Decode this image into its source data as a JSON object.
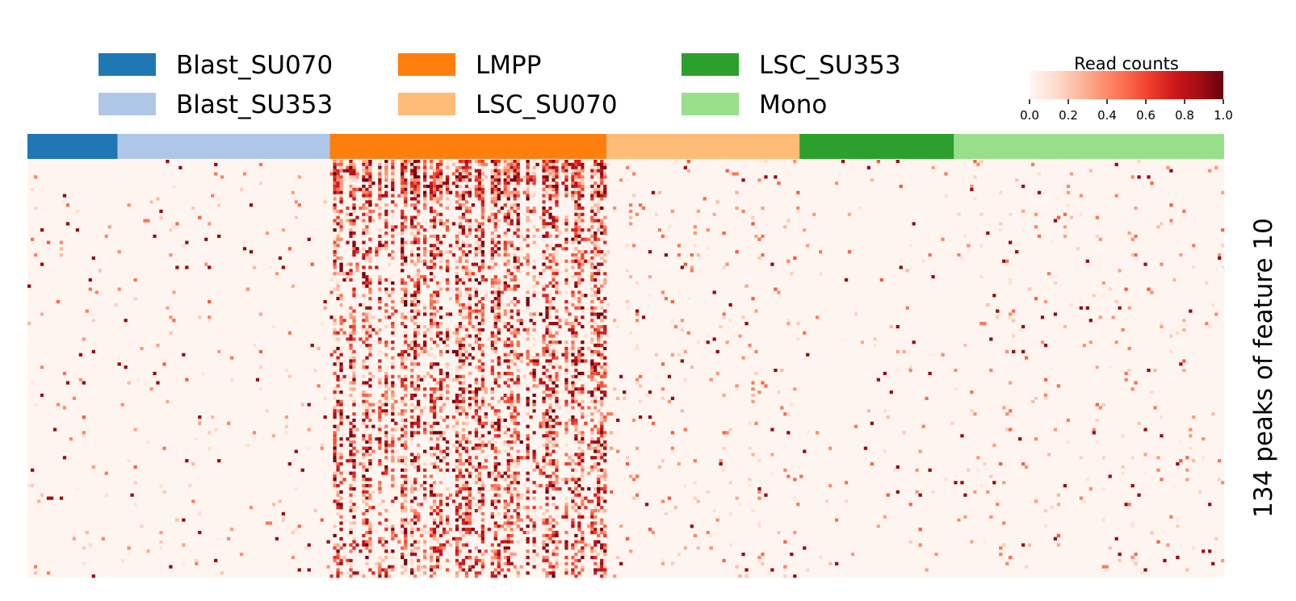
{
  "chart_data": {
    "type": "heatmap",
    "title": "",
    "ylabel": "134 peaks of feature 10",
    "colorbar": {
      "title": "Read counts",
      "range": [
        0.0,
        1.0
      ],
      "ticks": [
        "0.0",
        "0.2",
        "0.4",
        "0.6",
        "0.8",
        "1.0"
      ],
      "colormap": "Reds"
    },
    "rows": 134,
    "legend": [
      {
        "name": "Blast_SU070",
        "color": "#1f77b4"
      },
      {
        "name": "Blast_SU353",
        "color": "#aec7e8"
      },
      {
        "name": "LMPP",
        "color": "#ff7f0e"
      },
      {
        "name": "LSC_SU070",
        "color": "#ffbb78"
      },
      {
        "name": "LSC_SU353",
        "color": "#2ca02c"
      },
      {
        "name": "Mono",
        "color": "#98df8a"
      }
    ],
    "groups": [
      {
        "name": "Blast_SU070",
        "color": "#1f77b4",
        "cells": 28,
        "mean_signal": 0.03
      },
      {
        "name": "Blast_SU353",
        "color": "#aec7e8",
        "cells": 66,
        "mean_signal": 0.03
      },
      {
        "name": "LMPP",
        "color": "#ff7f0e",
        "cells": 86,
        "mean_signal": 0.35
      },
      {
        "name": "LSC_SU070",
        "color": "#ffbb78",
        "cells": 60,
        "mean_signal": 0.05
      },
      {
        "name": "LSC_SU353",
        "color": "#2ca02c",
        "cells": 48,
        "mean_signal": 0.02
      },
      {
        "name": "Mono",
        "color": "#98df8a",
        "cells": 84,
        "mean_signal": 0.04
      }
    ]
  }
}
